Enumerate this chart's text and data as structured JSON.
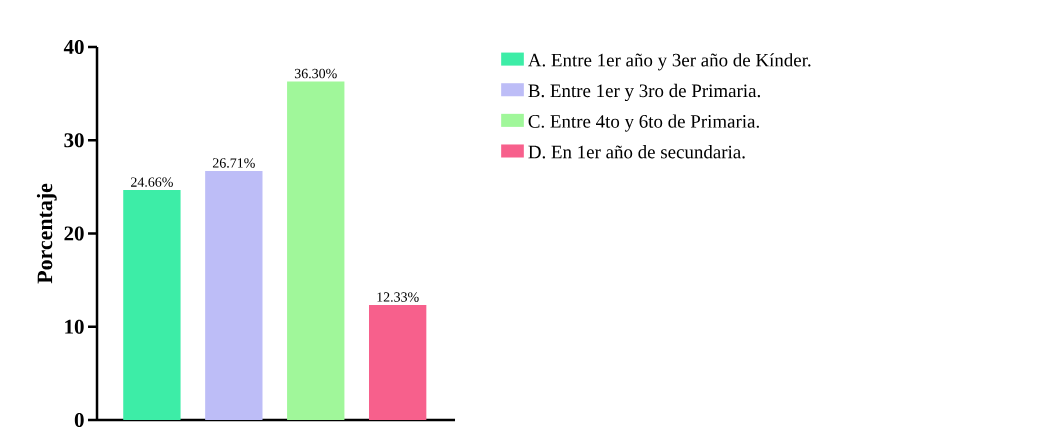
{
  "chart_data": {
    "type": "bar",
    "ylabel": "Porcentaje",
    "categories": [
      null,
      null,
      null,
      null
    ],
    "series": [
      {
        "name": "A. Entre 1er año y 3er año de Kínder.",
        "color": "#3deda7",
        "values": [
          24.66,
          null,
          null,
          null
        ],
        "value_labels": [
          "24.66%",
          null,
          null,
          null
        ]
      },
      {
        "name": "B. Entre 1er y 3ro de Primaria.",
        "color": "#bdbdf7",
        "values": [
          null,
          26.71,
          null,
          null
        ],
        "value_labels": [
          null,
          "26.71%",
          null,
          null
        ]
      },
      {
        "name": "C. Entre 4to y 6to de Primaria.",
        "color": "#a0f79a",
        "values": [
          null,
          null,
          36.3,
          null
        ],
        "value_labels": [
          null,
          null,
          "36.30%",
          null
        ]
      },
      {
        "name": "D. En 1er año de secundaria.",
        "color": "#f7608c",
        "values": [
          null,
          null,
          null,
          12.33
        ],
        "value_labels": [
          null,
          null,
          null,
          "12.33%"
        ]
      }
    ],
    "ylim": [
      0,
      40
    ],
    "yticks": [
      0,
      10,
      20,
      30,
      40
    ],
    "grid": false,
    "legend": "right",
    "tick_labels": "y"
  }
}
